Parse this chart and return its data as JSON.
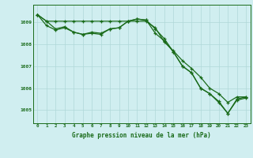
{
  "title": "Graphe pression niveau de la mer (hPa)",
  "bg_color": "#d0eef0",
  "grid_color": "#b0d8d8",
  "line_color": "#1a6b1a",
  "xlim": [
    -0.5,
    23.5
  ],
  "ylim": [
    1004.4,
    1009.8
  ],
  "yticks": [
    1005,
    1006,
    1007,
    1008,
    1009
  ],
  "xticks": [
    0,
    1,
    2,
    3,
    4,
    5,
    6,
    7,
    8,
    9,
    10,
    11,
    12,
    13,
    14,
    15,
    16,
    17,
    18,
    19,
    20,
    21,
    22,
    23
  ],
  "line1": [
    1009.35,
    1009.05,
    1009.05,
    1009.05,
    1009.05,
    1009.05,
    1009.05,
    1009.05,
    1009.05,
    1009.05,
    1009.05,
    1009.05,
    1009.05,
    1008.75,
    1008.1,
    1007.7,
    1007.25,
    1006.9,
    1006.5,
    1006.0,
    1005.75,
    1005.35,
    1005.6,
    1005.6
  ],
  "line2": [
    1009.35,
    1008.85,
    1008.65,
    1008.75,
    1008.55,
    1008.45,
    1008.5,
    1008.45,
    1008.7,
    1008.75,
    1009.05,
    1009.15,
    1009.1,
    1008.5,
    1008.15,
    1007.65,
    1007.0,
    1006.7,
    1006.0,
    1005.75,
    1005.35,
    1004.85,
    1005.45,
    1005.55
  ],
  "line3": [
    1009.35,
    1009.05,
    1008.7,
    1008.8,
    1008.55,
    1008.45,
    1008.55,
    1008.5,
    1008.7,
    1008.75,
    1009.05,
    1009.15,
    1009.1,
    1008.7,
    1008.25,
    1007.65,
    1007.0,
    1006.7,
    1006.0,
    1005.75,
    1005.4,
    1004.85,
    1005.5,
    1005.6
  ]
}
